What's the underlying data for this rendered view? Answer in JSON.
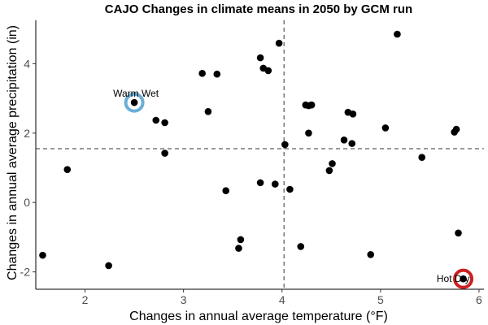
{
  "chart_data": {
    "type": "scatter",
    "title": "CAJO Changes in climate means in 2050 by GCM run",
    "xlabel": "Changes in annual average temperature (°F)",
    "ylabel": "Changes in annual average precipitation (in)",
    "xlim": [
      1.5,
      6.05
    ],
    "ylim": [
      -2.5,
      5.25
    ],
    "xticks": [
      2,
      3,
      4,
      5,
      6
    ],
    "yticks": [
      -2,
      0,
      2,
      4
    ],
    "grid": false,
    "reference_lines": {
      "x": 4.02,
      "y": 1.55
    },
    "point_color": "#000000",
    "points": [
      {
        "x": 1.57,
        "y": -1.52
      },
      {
        "x": 1.82,
        "y": 0.95
      },
      {
        "x": 2.24,
        "y": -1.82
      },
      {
        "x": 2.5,
        "y": 2.88
      },
      {
        "x": 2.72,
        "y": 2.37
      },
      {
        "x": 2.81,
        "y": 2.3
      },
      {
        "x": 2.81,
        "y": 1.42
      },
      {
        "x": 3.19,
        "y": 3.72
      },
      {
        "x": 3.25,
        "y": 2.62
      },
      {
        "x": 3.34,
        "y": 3.7
      },
      {
        "x": 3.43,
        "y": 0.34
      },
      {
        "x": 3.56,
        "y": -1.32
      },
      {
        "x": 3.58,
        "y": -1.07
      },
      {
        "x": 3.78,
        "y": 4.17
      },
      {
        "x": 3.78,
        "y": 0.57
      },
      {
        "x": 3.81,
        "y": 3.87
      },
      {
        "x": 3.86,
        "y": 3.8
      },
      {
        "x": 3.93,
        "y": 0.53
      },
      {
        "x": 3.97,
        "y": 4.59
      },
      {
        "x": 4.03,
        "y": 1.67
      },
      {
        "x": 4.08,
        "y": 0.38
      },
      {
        "x": 4.19,
        "y": -1.27
      },
      {
        "x": 4.24,
        "y": 2.81
      },
      {
        "x": 4.27,
        "y": 2.79
      },
      {
        "x": 4.27,
        "y": 2.0
      },
      {
        "x": 4.3,
        "y": 2.81
      },
      {
        "x": 4.48,
        "y": 0.92
      },
      {
        "x": 4.51,
        "y": 1.12
      },
      {
        "x": 4.63,
        "y": 1.8
      },
      {
        "x": 4.67,
        "y": 2.6
      },
      {
        "x": 4.72,
        "y": 2.55
      },
      {
        "x": 4.71,
        "y": 1.7
      },
      {
        "x": 4.9,
        "y": -1.5
      },
      {
        "x": 5.05,
        "y": 2.15
      },
      {
        "x": 5.17,
        "y": 4.85
      },
      {
        "x": 5.42,
        "y": 1.3
      },
      {
        "x": 5.75,
        "y": 2.03
      },
      {
        "x": 5.77,
        "y": 2.11
      },
      {
        "x": 5.79,
        "y": -0.88
      },
      {
        "x": 5.84,
        "y": -2.2
      }
    ],
    "annotations": [
      {
        "label": "Warm Wet",
        "x": 2.5,
        "y": 2.88,
        "ring_color": "#6aaed6"
      },
      {
        "label": "Hot Dry",
        "x": 5.84,
        "y": -2.2,
        "ring_color": "#cc1f1f"
      }
    ]
  }
}
